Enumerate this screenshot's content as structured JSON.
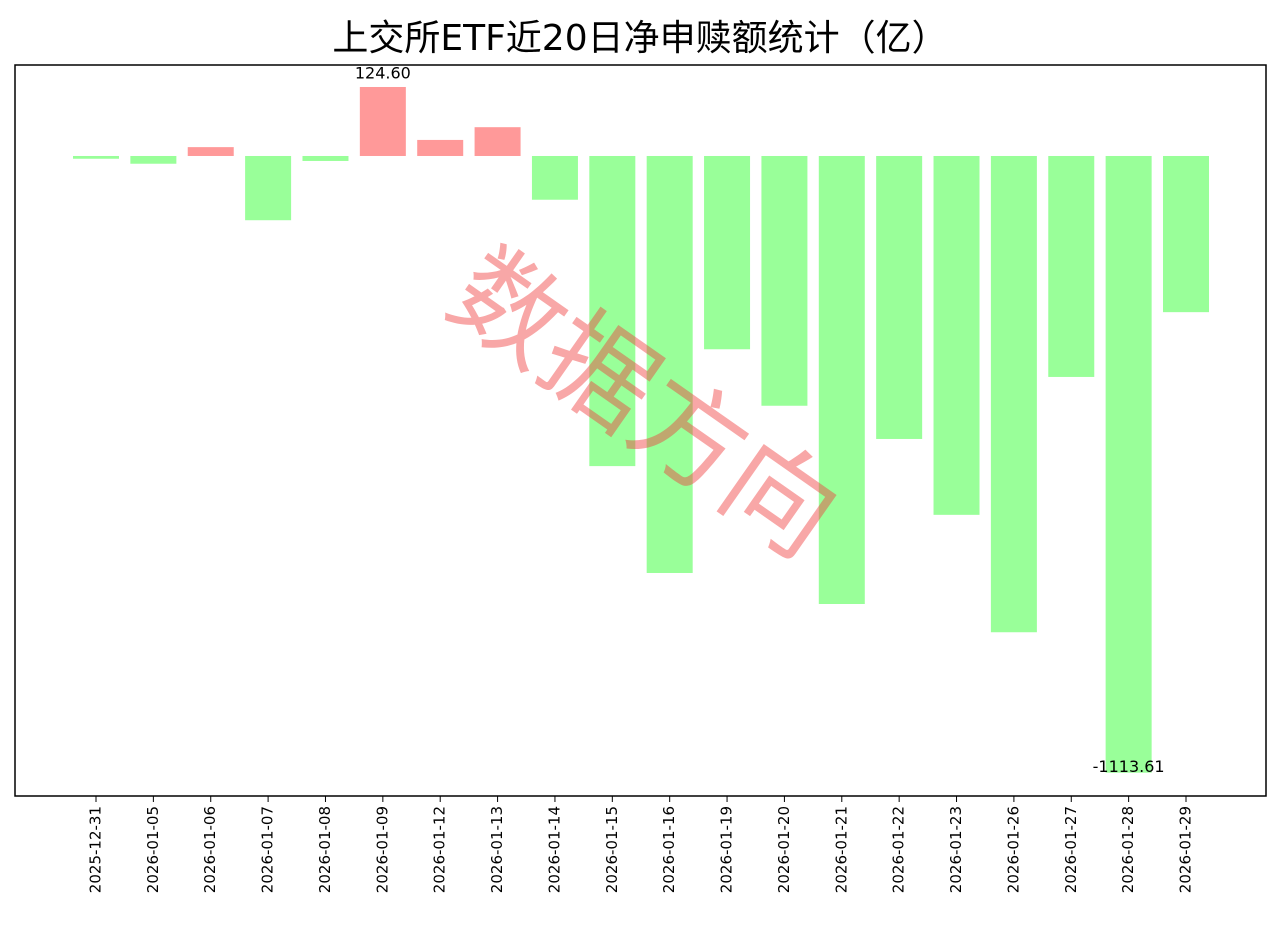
{
  "chart_data": {
    "type": "bar",
    "title": "上交所ETF近20日净申赎额统计（亿）",
    "categories": [
      "2025-12-31",
      "2026-01-05",
      "2026-01-06",
      "2026-01-07",
      "2026-01-08",
      "2026-01-09",
      "2026-01-12",
      "2026-01-13",
      "2026-01-14",
      "2026-01-15",
      "2026-01-16",
      "2026-01-19",
      "2026-01-20",
      "2026-01-21",
      "2026-01-22",
      "2026-01-23",
      "2026-01-26",
      "2026-01-27",
      "2026-01-28",
      "2026-01-29"
    ],
    "values": [
      -5,
      -14,
      16,
      -116,
      -9,
      124.6,
      29,
      52,
      -79,
      -560,
      -753,
      -349,
      -451,
      -809,
      -511,
      -648,
      -860,
      -399,
      -1113.61,
      -282
    ],
    "value_labels": [
      null,
      null,
      null,
      null,
      null,
      "124.60",
      null,
      null,
      null,
      null,
      null,
      null,
      null,
      null,
      null,
      null,
      null,
      null,
      "-1113.61",
      null
    ],
    "positive_color": "#ff9999",
    "negative_color": "#99ff99",
    "ylim": [
      -1155.7,
      164.3
    ],
    "watermark": "数据方向"
  }
}
